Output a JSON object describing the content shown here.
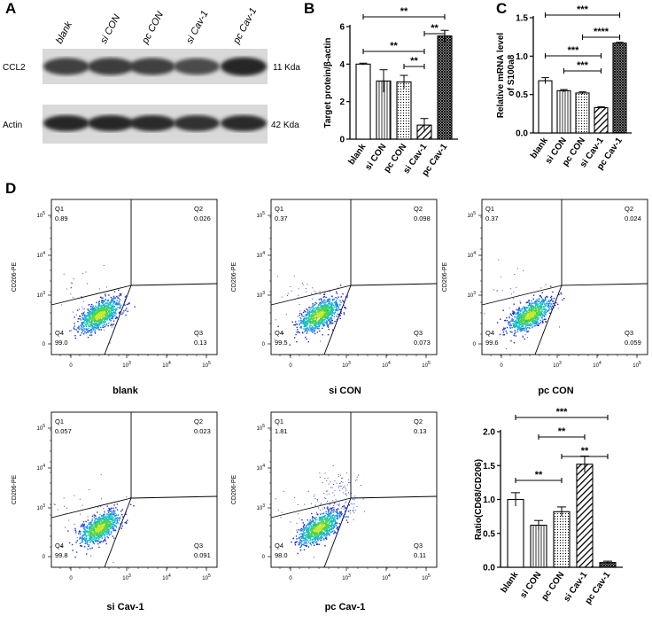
{
  "colors": {
    "black": "#000000",
    "white": "#ffffff",
    "dense_dot": "#2b2bd0",
    "blot_dark": "#2a2a2a"
  },
  "panel_labels": {
    "a": "A",
    "b": "B",
    "c": "C",
    "d": "D"
  },
  "western": {
    "lanes": [
      "blank",
      "si CON",
      "pc CON",
      "si Cav-1",
      "pc Cav-1"
    ],
    "band1": {
      "label": "CCL2",
      "kda": "11 Kda",
      "intensity": [
        0.55,
        0.6,
        0.55,
        0.45,
        0.8
      ]
    },
    "band2": {
      "label": "Actin",
      "kda": "42 Kda",
      "intensity": [
        0.75,
        0.75,
        0.7,
        0.65,
        0.7
      ]
    }
  },
  "flow": {
    "x_ticks": [
      "0",
      "10^3",
      "10^4",
      "10^5"
    ],
    "y_ticks": [
      "10^5",
      "10^4",
      "10^3",
      "0"
    ],
    "y_label": "CD206-PE",
    "quadrant_labels": [
      "Q1",
      "Q2",
      "Q3",
      "Q4"
    ],
    "plots": [
      {
        "sample": "blank",
        "q1": "0.89",
        "q2": "0.026",
        "q3": "0.13",
        "q4": "99.0"
      },
      {
        "sample": "si CON",
        "q1": "0.37",
        "q2": "0.098",
        "q3": "0.073",
        "q4": "99.5"
      },
      {
        "sample": "pc CON",
        "q1": "0.37",
        "q2": "0.024",
        "q3": "0.059",
        "q4": "99.6"
      },
      {
        "sample": "si Cav-1",
        "q1": "0.057",
        "q2": "0.023",
        "q3": "0.091",
        "q4": "99.8"
      },
      {
        "sample": "pc Cav-1",
        "q1": "1.81",
        "q2": "0.13",
        "q3": "0.11",
        "q4": "98.0"
      }
    ]
  },
  "chart_data": [
    {
      "type": "bar",
      "panel": "B",
      "categories": [
        "blank",
        "si CON",
        "pc CON",
        "si Cav-1",
        "pc Cav-1"
      ],
      "values": [
        4.0,
        3.1,
        3.05,
        0.75,
        5.5
      ],
      "errors": [
        0.05,
        0.6,
        0.35,
        0.35,
        0.3
      ],
      "ylabel": "Target protein/β-actin",
      "ylim": [
        0,
        6
      ],
      "yticks": [
        0,
        2,
        4,
        6
      ],
      "ytick_labels": [
        "0",
        "2",
        "4",
        "6"
      ],
      "significance": [
        {
          "from": 0,
          "to": 4,
          "label": "**"
        },
        {
          "from": 3,
          "to": 4,
          "label": "**"
        },
        {
          "from": 0,
          "to": 3,
          "label": "**"
        },
        {
          "from": 2,
          "to": 3,
          "label": "**"
        }
      ]
    },
    {
      "type": "bar",
      "panel": "C",
      "categories": [
        "blank",
        "si CON",
        "pc CON",
        "si Cav-1",
        "pc Cav-1"
      ],
      "values": [
        0.68,
        0.55,
        0.52,
        0.33,
        1.17
      ],
      "errors": [
        0.04,
        0.015,
        0.015,
        0.01,
        0.01
      ],
      "ylabel": "Relative mRNA level of S100a8",
      "ylabel_lines": [
        "Relative mRNA level",
        "of S100a8"
      ],
      "ylim": [
        0,
        1.5
      ],
      "yticks": [
        0,
        0.5,
        1.0,
        1.5
      ],
      "ytick_labels": [
        "0.0",
        "0.5",
        "1.0",
        "1.5"
      ],
      "significance": [
        {
          "from": 0,
          "to": 4,
          "label": "***"
        },
        {
          "from": 2,
          "to": 4,
          "label": "****"
        },
        {
          "from": 0,
          "to": 3,
          "label": "***"
        },
        {
          "from": 1,
          "to": 3,
          "label": "***"
        }
      ]
    },
    {
      "type": "bar",
      "panel": "D",
      "categories": [
        "blank",
        "si CON",
        "pc CON",
        "si Cav-1",
        "pc Cav-1"
      ],
      "values": [
        1.0,
        0.62,
        0.82,
        1.52,
        0.07
      ],
      "errors": [
        0.1,
        0.07,
        0.07,
        0.12,
        0.02
      ],
      "ylabel": "Ratio(CD68/CD206)",
      "ylim": [
        0,
        2.0
      ],
      "yticks": [
        0,
        0.5,
        1.0,
        1.5,
        2.0
      ],
      "ytick_labels": [
        "0.0",
        "0.5",
        "1.0",
        "1.5",
        "2.0"
      ],
      "significance": [
        {
          "from": 0,
          "to": 4,
          "label": "***"
        },
        {
          "from": 1,
          "to": 3,
          "label": "**"
        },
        {
          "from": 2,
          "to": 4,
          "label": "**"
        },
        {
          "from": 0,
          "to": 2,
          "label": "**"
        }
      ]
    }
  ]
}
